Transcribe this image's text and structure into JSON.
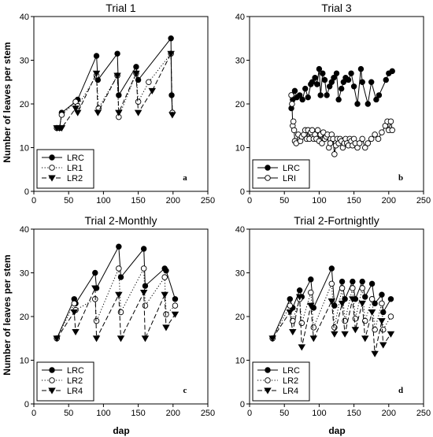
{
  "figure": {
    "ylabel": "Number of leaves per stem",
    "xlabel": "dap"
  },
  "chart_data": [
    {
      "type": "line",
      "title": "Trial 1",
      "panel_letter": "a",
      "xlim": [
        0,
        250
      ],
      "ylim": [
        0,
        40
      ],
      "xticks": [
        0,
        50,
        100,
        150,
        200,
        250
      ],
      "yticks": [
        0,
        10,
        20,
        30,
        40
      ],
      "legend_position": "bottom-left",
      "series": [
        {
          "name": "LRC",
          "marker": "circle-filled",
          "line": "solid",
          "x": [
            33,
            37,
            40,
            60,
            63,
            90,
            92,
            120,
            122,
            147,
            150,
            197,
            198,
            199
          ],
          "y": [
            14.5,
            14.5,
            18,
            20.5,
            21,
            31,
            25.5,
            31.5,
            22,
            28.5,
            25.5,
            35,
            22,
            18
          ]
        },
        {
          "name": "LR1",
          "marker": "circle-open",
          "line": "dotted",
          "x": [
            33,
            37,
            40,
            60,
            63,
            90,
            93,
            120,
            122,
            147,
            150,
            165,
            197,
            199
          ],
          "y": [
            14.5,
            14.5,
            17.5,
            20.5,
            19.5,
            26.5,
            19,
            26.5,
            17,
            27,
            20.5,
            25,
            31.5,
            18
          ]
        },
        {
          "name": "LR2",
          "marker": "triangle-down-filled",
          "line": "dashed",
          "x": [
            33,
            37,
            40,
            60,
            63,
            90,
            92,
            120,
            122,
            147,
            150,
            170,
            197,
            199
          ],
          "y": [
            14.5,
            14.5,
            14.5,
            19,
            18,
            27,
            18,
            26.5,
            18,
            27,
            18,
            23,
            31.5,
            17.5
          ]
        }
      ]
    },
    {
      "type": "line",
      "title": "Trial 3",
      "panel_letter": "b",
      "xlim": [
        0,
        250
      ],
      "ylim": [
        0,
        40
      ],
      "xticks": [
        0,
        50,
        100,
        150,
        200,
        250
      ],
      "yticks": [
        0,
        10,
        20,
        30,
        40
      ],
      "legend_position": "bottom-left",
      "series": [
        {
          "name": "LRC",
          "marker": "circle-filled",
          "line": "solid",
          "x": [
            60,
            62,
            65,
            68,
            72,
            76,
            80,
            84,
            88,
            90,
            94,
            97,
            100,
            102,
            105,
            108,
            111,
            115,
            118,
            121,
            125,
            128,
            132,
            135,
            138,
            142,
            146,
            150,
            155,
            160,
            162,
            170,
            175,
            182,
            186,
            196,
            200,
            205
          ],
          "y": [
            19,
            21,
            23,
            21.5,
            22,
            21,
            23.5,
            21.5,
            24.5,
            25,
            26,
            24.5,
            28,
            22,
            27,
            25.5,
            22,
            24,
            25,
            26,
            27,
            21,
            23.5,
            25,
            26,
            25.5,
            27,
            24,
            20,
            28,
            25,
            20,
            25,
            21,
            22,
            25.5,
            27,
            27.5
          ]
        },
        {
          "name": "LRI",
          "marker": "circle-open",
          "line": "solid",
          "x": [
            60,
            61,
            62,
            63,
            64,
            65,
            67,
            70,
            73,
            75,
            78,
            80,
            82,
            84,
            86,
            88,
            90,
            92,
            94,
            96,
            98,
            100,
            102,
            104,
            106,
            108,
            110,
            112,
            114,
            116,
            118,
            120,
            122,
            124,
            126,
            128,
            130,
            132,
            134,
            136,
            138,
            140,
            142,
            144,
            146,
            148,
            150,
            152,
            155,
            158,
            162,
            166,
            170,
            175,
            180,
            185,
            190,
            195,
            198,
            200,
            203,
            205
          ],
          "y": [
            22,
            20,
            15,
            16,
            14,
            11.5,
            11,
            13,
            11.5,
            12.5,
            13,
            14,
            12,
            14,
            12,
            13.5,
            14,
            12,
            13,
            12,
            14,
            11.5,
            13,
            11,
            13.5,
            12,
            12.5,
            13,
            10,
            11,
            13,
            12,
            8.5,
            10.5,
            12,
            11,
            12,
            11.5,
            10,
            11,
            12,
            11,
            10.5,
            12,
            11.5,
            10.5,
            12,
            11,
            10,
            11,
            12,
            10,
            11,
            12,
            13,
            12,
            13.5,
            15,
            16,
            14,
            16,
            14
          ]
        }
      ]
    },
    {
      "type": "line",
      "title": "Trial 2-Monthly",
      "panel_letter": "c",
      "xlim": [
        0,
        250
      ],
      "ylim": [
        0,
        40
      ],
      "xticks": [
        0,
        50,
        100,
        150,
        200,
        250
      ],
      "yticks": [
        0,
        10,
        20,
        30,
        40
      ],
      "legend_position": "bottom-left",
      "series": [
        {
          "name": "LRC",
          "marker": "circle-filled",
          "line": "solid",
          "x": [
            33,
            58,
            60,
            88,
            90,
            122,
            125,
            158,
            160,
            188,
            190,
            203
          ],
          "y": [
            15,
            24,
            23,
            30,
            26.5,
            36,
            29,
            35.5,
            27,
            31,
            30.5,
            24
          ]
        },
        {
          "name": "LR2",
          "marker": "circle-open",
          "line": "dotted",
          "x": [
            33,
            58,
            60,
            88,
            90,
            122,
            125,
            158,
            160,
            188,
            190,
            203
          ],
          "y": [
            15,
            23,
            21.5,
            24,
            19,
            31,
            21,
            31,
            22.5,
            29,
            20.5,
            22.5
          ]
        },
        {
          "name": "LR4",
          "marker": "triangle-down-filled",
          "line": "dashed",
          "x": [
            33,
            58,
            60,
            88,
            90,
            122,
            125,
            158,
            160,
            188,
            190,
            203
          ],
          "y": [
            15,
            21,
            16.5,
            26.5,
            15,
            25,
            15,
            25.5,
            15,
            25,
            17.5,
            20.5
          ]
        }
      ]
    },
    {
      "type": "line",
      "title": "Trial 2-Fortnightly",
      "panel_letter": "d",
      "xlim": [
        0,
        250
      ],
      "ylim": [
        0,
        40
      ],
      "xticks": [
        0,
        50,
        100,
        150,
        200,
        250
      ],
      "yticks": [
        0,
        10,
        20,
        30,
        40
      ],
      "legend_position": "bottom-left",
      "series": [
        {
          "name": "LRC",
          "marker": "circle-filled",
          "line": "solid",
          "x": [
            33,
            58,
            62,
            72,
            75,
            88,
            92,
            118,
            122,
            133,
            137,
            148,
            152,
            162,
            166,
            176,
            180,
            190,
            192,
            203
          ],
          "y": [
            15,
            24,
            22,
            26,
            24.5,
            28.5,
            22,
            31,
            22.5,
            28,
            24,
            28,
            24,
            28,
            24.5,
            27.5,
            23,
            25,
            21,
            24
          ]
        },
        {
          "name": "LR2",
          "marker": "circle-open",
          "line": "dotted",
          "x": [
            33,
            58,
            62,
            72,
            75,
            88,
            92,
            118,
            122,
            133,
            137,
            148,
            152,
            162,
            166,
            176,
            180,
            190,
            192,
            203
          ],
          "y": [
            15,
            22.5,
            19,
            24,
            18.5,
            25.5,
            17.5,
            27.5,
            17.5,
            26.5,
            19,
            26.5,
            19.5,
            26.5,
            19,
            24,
            17,
            23,
            17,
            20
          ]
        },
        {
          "name": "LR4",
          "marker": "triangle-down-filled",
          "line": "dashed",
          "x": [
            33,
            58,
            62,
            72,
            75,
            88,
            92,
            118,
            122,
            133,
            137,
            148,
            152,
            162,
            166,
            176,
            180,
            190,
            192,
            203
          ],
          "y": [
            15,
            21,
            16.5,
            24.5,
            13,
            22.5,
            15,
            23.5,
            16,
            23,
            16,
            24,
            17,
            23,
            15,
            21,
            11.5,
            19,
            13.5,
            16
          ]
        }
      ]
    }
  ]
}
